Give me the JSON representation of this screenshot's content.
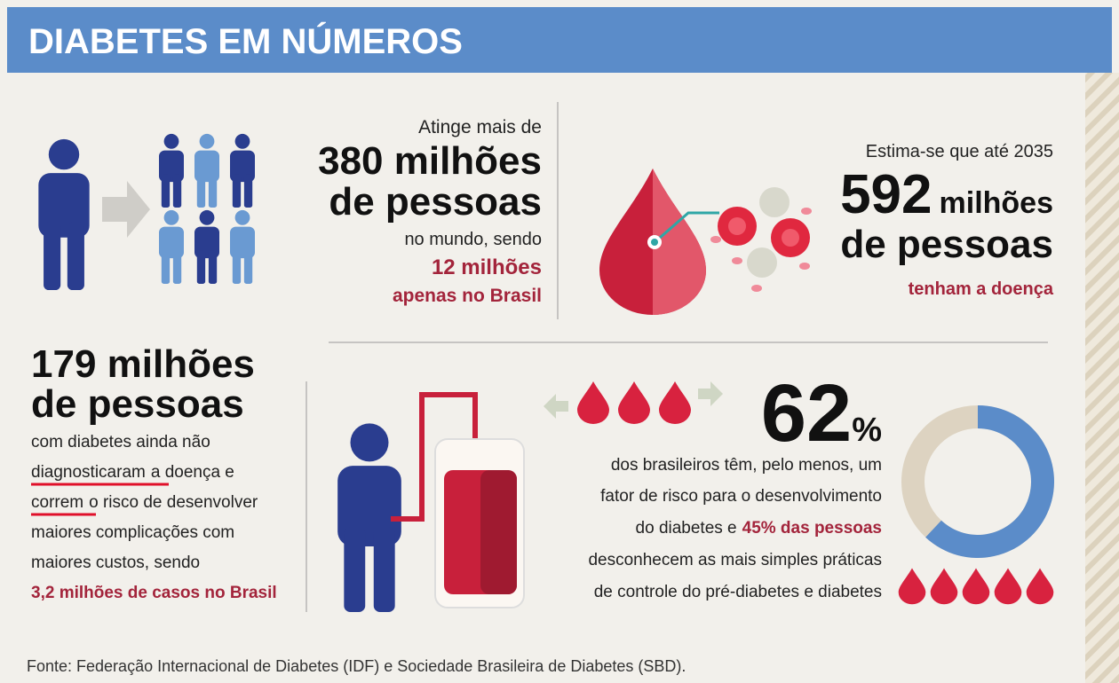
{
  "header": {
    "title": "DIABETES EM NÚMEROS"
  },
  "world": {
    "intro": "Atinge mais de",
    "big1": "380 milhões",
    "big2": "de pessoas",
    "line": "no mundo, sendo",
    "brazil1": "12 milhões",
    "brazil2": "apenas no Brasil"
  },
  "forecast": {
    "intro": "Estima-se que até 2035",
    "number": "592",
    "unit": "milhões",
    "big2": "de pessoas",
    "outro": "tenham a doença"
  },
  "undiagnosed": {
    "big1": "179 milhões",
    "big2": "de pessoas",
    "line1": "com diabetes ainda não",
    "underline1": "diagnosticaram",
    "line2": "a doença e",
    "underline2": "correm",
    "line3": "o risco de desenvolver",
    "line4": "maiores complicações com",
    "line5": "maiores custos, sendo",
    "highlight": "3,2 milhões de casos no Brasil"
  },
  "risk": {
    "percent": 62,
    "symbol": "%",
    "line1": "dos brasileiros têm, pelo menos, um",
    "line2": "fator de risco para o desenvolvimento",
    "line3": "do diabetes e",
    "highlight": "45% das pessoas",
    "line4": "desconhecem as mais simples práticas",
    "line5": "de controle do pré-diabetes e diabetes"
  },
  "footer": {
    "source": "Fonte: Federação Internacional de Diabetes (IDF) e Sociedade Brasileira de Diabetes (SBD)."
  }
}
